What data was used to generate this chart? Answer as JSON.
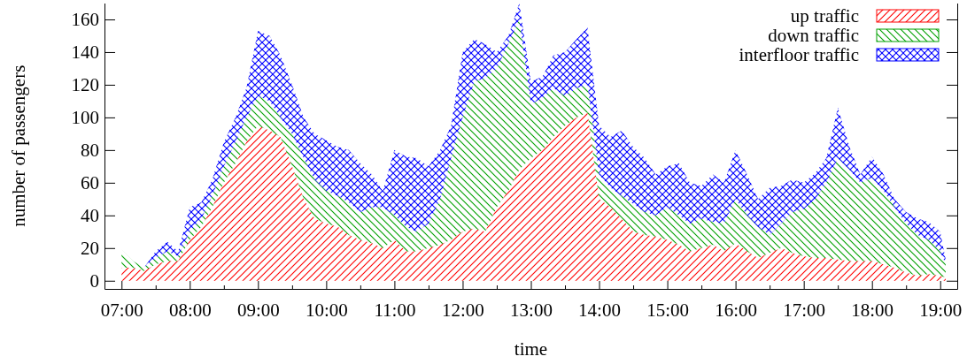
{
  "chart_data": {
    "type": "area",
    "stacked": true,
    "xlabel": "time",
    "ylabel": "number of passengers",
    "x": [
      7,
      7.17,
      7.33,
      7.5,
      7.67,
      7.83,
      8,
      8.17,
      8.33,
      8.5,
      8.67,
      8.83,
      9,
      9.17,
      9.33,
      9.5,
      9.67,
      9.83,
      10,
      10.17,
      10.33,
      10.5,
      10.67,
      10.83,
      11,
      11.17,
      11.33,
      11.5,
      11.67,
      11.83,
      12,
      12.17,
      12.33,
      12.5,
      12.67,
      12.83,
      13,
      13.17,
      13.33,
      13.5,
      13.67,
      13.83,
      14,
      14.17,
      14.33,
      14.5,
      14.67,
      14.83,
      15,
      15.17,
      15.33,
      15.5,
      15.67,
      15.83,
      16,
      16.17,
      16.33,
      16.5,
      16.67,
      16.83,
      17,
      17.17,
      17.33,
      17.5,
      17.67,
      17.83,
      18,
      18.17,
      18.33,
      18.5,
      18.67,
      18.83,
      19,
      19.08
    ],
    "series": [
      {
        "name": "up traffic",
        "color": "#ff0000",
        "values": [
          8,
          8,
          6,
          10,
          12,
          12,
          25,
          33,
          45,
          60,
          72,
          85,
          95,
          92,
          88,
          70,
          50,
          38,
          35,
          33,
          28,
          25,
          23,
          20,
          25,
          18,
          18,
          20,
          22,
          25,
          30,
          32,
          30,
          45,
          55,
          68,
          75,
          80,
          88,
          95,
          100,
          103,
          50,
          45,
          38,
          30,
          28,
          27,
          25,
          22,
          18,
          20,
          22,
          18,
          23,
          18,
          14,
          17,
          20,
          17,
          15,
          14,
          14,
          13,
          12,
          12,
          12,
          10,
          8,
          5,
          3,
          4,
          3,
          2
        ]
      },
      {
        "name": "down traffic",
        "color": "#00a000",
        "values": [
          11,
          4,
          2,
          4,
          6,
          3,
          5,
          5,
          7,
          10,
          13,
          15,
          18,
          18,
          12,
          20,
          25,
          24,
          20,
          19,
          20,
          17,
          22,
          25,
          15,
          15,
          12,
          15,
          28,
          50,
          70,
          90,
          94,
          85,
          90,
          92,
          33,
          32,
          30,
          18,
          18,
          17,
          15,
          12,
          14,
          17,
          14,
          13,
          20,
          18,
          17,
          18,
          14,
          17,
          27,
          22,
          19,
          11,
          15,
          25,
          29,
          36,
          46,
          62,
          56,
          48,
          51,
          45,
          37,
          30,
          25,
          21,
          15,
          8
        ]
      },
      {
        "name": "interfloor traffic",
        "color": "#0000ff",
        "values": [
          0,
          0,
          0,
          4,
          6,
          3,
          15,
          10,
          10,
          15,
          15,
          18,
          40,
          40,
          38,
          30,
          25,
          28,
          31,
          30,
          32,
          30,
          20,
          10,
          40,
          43,
          45,
          35,
          30,
          20,
          40,
          26,
          21,
          10,
          5,
          10,
          14,
          13,
          20,
          27,
          30,
          35,
          30,
          31,
          40,
          35,
          33,
          25,
          25,
          32,
          25,
          20,
          29,
          25,
          30,
          25,
          17,
          29,
          23,
          20,
          16,
          16,
          15,
          31,
          14,
          5,
          13,
          10,
          5,
          7,
          10,
          11,
          12,
          3
        ]
      }
    ],
    "xlim": [
      6.75,
      19.25
    ],
    "ylim": [
      -5,
      170
    ],
    "xticks": [
      {
        "value": 7,
        "label": "07:00"
      },
      {
        "value": 7.5,
        "label": null
      },
      {
        "value": 8,
        "label": "08:00"
      },
      {
        "value": 8.5,
        "label": null
      },
      {
        "value": 9,
        "label": "09:00"
      },
      {
        "value": 9.5,
        "label": null
      },
      {
        "value": 10,
        "label": "10:00"
      },
      {
        "value": 10.5,
        "label": null
      },
      {
        "value": 11,
        "label": "11:00"
      },
      {
        "value": 11.5,
        "label": null
      },
      {
        "value": 12,
        "label": "12:00"
      },
      {
        "value": 12.5,
        "label": null
      },
      {
        "value": 13,
        "label": "13:00"
      },
      {
        "value": 13.5,
        "label": null
      },
      {
        "value": 14,
        "label": "14:00"
      },
      {
        "value": 14.5,
        "label": null
      },
      {
        "value": 15,
        "label": "15:00"
      },
      {
        "value": 15.5,
        "label": null
      },
      {
        "value": 16,
        "label": "16:00"
      },
      {
        "value": 16.5,
        "label": null
      },
      {
        "value": 17,
        "label": "17:00"
      },
      {
        "value": 17.5,
        "label": null
      },
      {
        "value": 18,
        "label": "18:00"
      },
      {
        "value": 18.5,
        "label": null
      },
      {
        "value": 19,
        "label": "19:00"
      }
    ],
    "yticks": [
      0,
      20,
      40,
      60,
      80,
      100,
      120,
      140,
      160
    ],
    "grid": false,
    "legend": "top right"
  }
}
